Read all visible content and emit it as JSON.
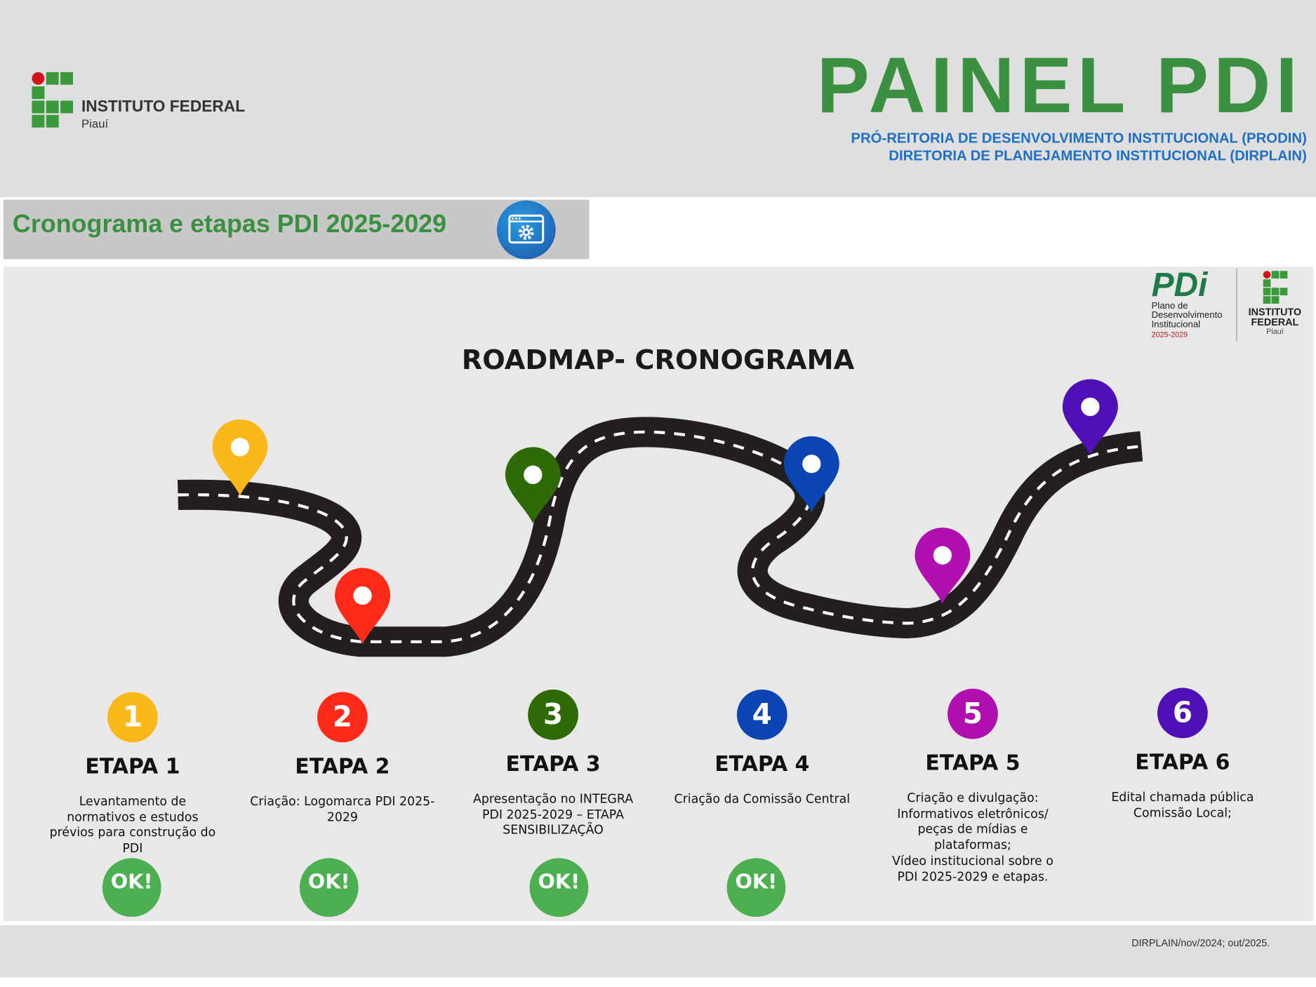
{
  "header": {
    "logo": {
      "name": "INSTITUTO FEDERAL",
      "campus": "Piauí"
    },
    "title": "PAINEL PDI",
    "subtitle_1": "PRÓ-REITORIA DE DESENVOLVIMENTO INSTITUCIONAL (PRODIN)",
    "subtitle_2": "DIRETORIA DE PLANEJAMENTO INSTITUCIONAL (DIRPLAIN)"
  },
  "section": {
    "title": "Cronograma e etapas PDI 2025-2029",
    "icon": "browser-gear-icon"
  },
  "panel": {
    "pdi_logo": {
      "mark": "PDi",
      "line1": "Plano de",
      "line2": "Desenvolvimento",
      "line3": "Institucional",
      "years": "2025-2029"
    },
    "if_logo": {
      "line1": "INSTITUTO",
      "line2": "FEDERAL",
      "campus": "Piauí"
    },
    "roadmap_title": "ROADMAP- CRONOGRAMA",
    "stages": [
      {
        "number": "1",
        "label": "ETAPA 1",
        "color": "#fbb81a",
        "description": "Levantamento de normativos e estudos prévios para construção do PDI",
        "status": "OK!"
      },
      {
        "number": "2",
        "label": "ETAPA 2",
        "color": "#ff2a1a",
        "description": "Criação: Logomarca PDI 2025-2029",
        "status": "OK!"
      },
      {
        "number": "3",
        "label": "ETAPA 3",
        "color": "#2e6a05",
        "description": "Apresentação no INTEGRA PDI 2025-2029 – ETAPA SENSIBILIZAÇÃO",
        "status": "OK!"
      },
      {
        "number": "4",
        "label": "ETAPA 4",
        "color": "#0b44b3",
        "description": "Criação da Comissão Central",
        "status": "OK!"
      },
      {
        "number": "5",
        "label": "ETAPA 5",
        "color": "#b00fb0",
        "description": "Criação e divulgação: Informativos eletrônicos/ peças de mídias e plataformas;\nVídeo institucional sobre o PDI 2025-2029 e etapas.",
        "status": ""
      },
      {
        "number": "6",
        "label": "ETAPA 6",
        "color": "#5010b8",
        "description": "Edital chamada pública Comissão Local;",
        "status": ""
      }
    ]
  },
  "footer": {
    "text": "DIRPLAIN/nov/2024; out/2025."
  }
}
